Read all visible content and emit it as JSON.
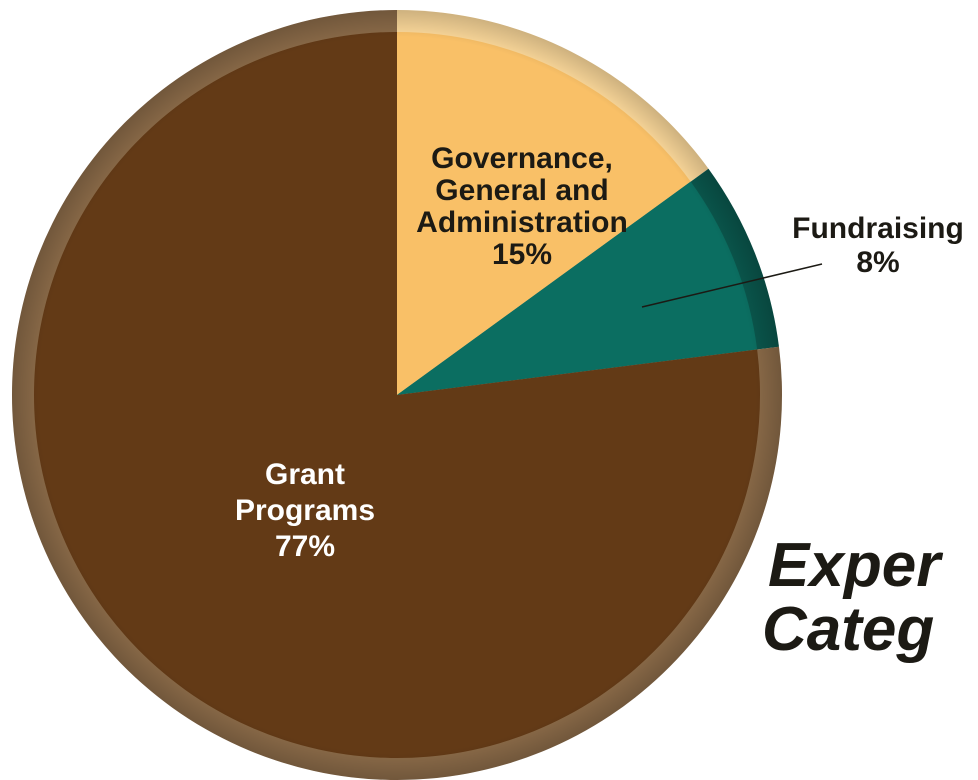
{
  "chart_data": {
    "type": "pie",
    "title_lines": [
      "Exper",
      "Categ"
    ],
    "slices": [
      {
        "label_lines": [
          "Governance,",
          "General and",
          "Administration"
        ],
        "value_label": "15%",
        "value": 15,
        "color": "#f9c067",
        "rim_color": "#fbd89a"
      },
      {
        "label_lines": [
          "Fundraising"
        ],
        "value_label": "8%",
        "value": 8,
        "color": "#0b6e61",
        "rim_color": "#0a564c"
      },
      {
        "label_lines": [
          "Grant",
          "Programs"
        ],
        "value_label": "77%",
        "value": 77,
        "color": "#633a16",
        "rim_color": "#8a6a48"
      }
    ]
  }
}
